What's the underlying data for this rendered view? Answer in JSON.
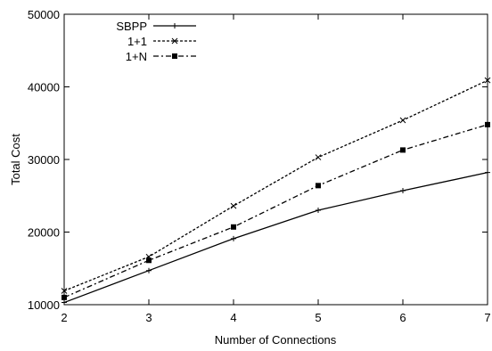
{
  "chart_data": {
    "type": "line",
    "xlabel": "Number of Connections",
    "ylabel": "Total Cost",
    "x": [
      2,
      3,
      4,
      5,
      6,
      7
    ],
    "xlim": [
      2,
      7
    ],
    "ylim": [
      10000,
      50000
    ],
    "xticks": [
      "2",
      "3",
      "4",
      "5",
      "6",
      "7"
    ],
    "yticks": [
      "10000",
      "20000",
      "30000",
      "40000",
      "50000"
    ],
    "grid": false,
    "legend_position": "top-left",
    "series": [
      {
        "name": "SBPP",
        "values": [
          10300,
          14700,
          19100,
          23000,
          25700,
          28200
        ],
        "style": "solid",
        "marker": "plus"
      },
      {
        "name": "1+1",
        "values": [
          11900,
          16600,
          23600,
          30300,
          35400,
          40900
        ],
        "style": "dotted",
        "marker": "cross"
      },
      {
        "name": "1+N",
        "values": [
          11000,
          16100,
          20700,
          26400,
          31300,
          34800
        ],
        "style": "dash-dot",
        "marker": "square"
      }
    ],
    "colors": {
      "line": "#000000",
      "background": "#ffffff"
    }
  }
}
